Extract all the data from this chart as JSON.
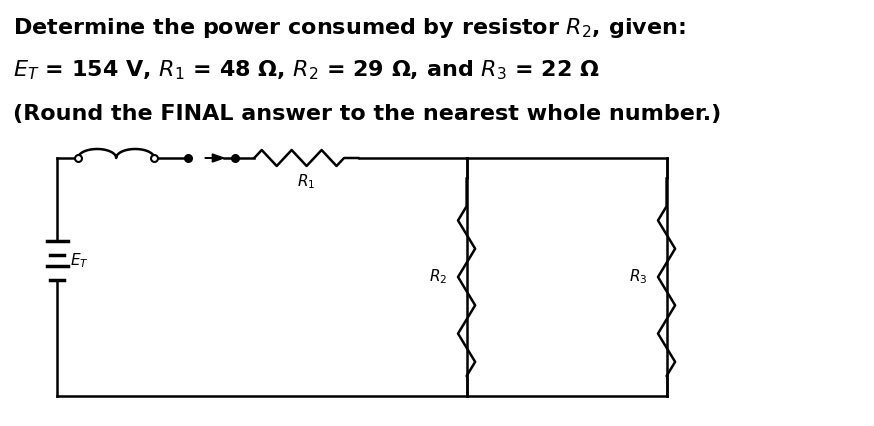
{
  "title_line1": "Determine the power consumed by resistor $R_{2}$, given:",
  "title_line2": "$E_T$ = 154 V, $R_1$ = 48 Ω, $R_2$ = 29 Ω, and $R_3$ = 22 Ω",
  "title_line3": "(Round the FINAL answer to the nearest whole number.)",
  "bg_color": "#ffffff",
  "text_color": "#000000",
  "circuit_color": "#000000",
  "font_size_main": 16,
  "circuit_lw": 1.8
}
